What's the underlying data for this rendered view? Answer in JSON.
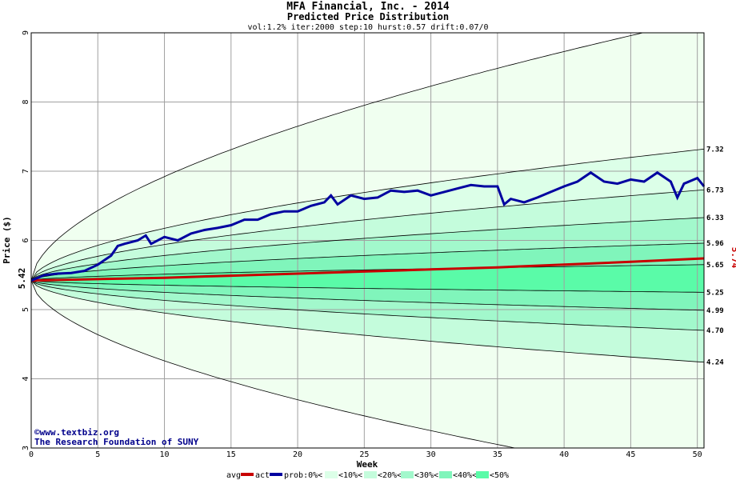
{
  "chart_data": {
    "type": "area",
    "title": "MFA Financial, Inc. - 2014",
    "subtitle": "Predicted Price Distribution",
    "params": "vol:1.2% iter:2000 step:10 hurst:0.57 drift:0.07/0",
    "xlabel": "Week",
    "ylabel": "Price ($)",
    "xlim": [
      0,
      50.5
    ],
    "ylim": [
      3,
      9
    ],
    "x_ticks": [
      0,
      5,
      10,
      15,
      20,
      25,
      30,
      35,
      40,
      45,
      50
    ],
    "y_ticks": [
      3,
      4,
      5,
      6,
      7,
      8,
      9
    ],
    "start_price": 5.42,
    "start_price_label": "5.42",
    "end_price_label": "5.74",
    "colors": {
      "act": "#0000a0",
      "avg": "#c80000",
      "b0": "#f0fff0",
      "b10": "#dcffe8",
      "b20": "#c4fcdc",
      "b30": "#a2f8cc",
      "b40": "#80f5bb",
      "b50": "#5afba8",
      "grid": "#a0a0a0"
    },
    "percentile_curves": [
      {
        "name": "p0_upper",
        "end": 9.2,
        "edge_label": ""
      },
      {
        "name": "p10_upper",
        "end": 7.32,
        "edge_label": "7.32"
      },
      {
        "name": "p20_upper",
        "end": 6.73,
        "edge_label": "6.73"
      },
      {
        "name": "p30_upper",
        "end": 6.33,
        "edge_label": "6.33"
      },
      {
        "name": "p40_upper",
        "end": 5.96,
        "edge_label": "5.96"
      },
      {
        "name": "p50_upper",
        "end": 5.65,
        "edge_label": "5.65"
      },
      {
        "name": "p50_lower",
        "end": 5.25,
        "edge_label": "5.25"
      },
      {
        "name": "p40_lower",
        "end": 4.99,
        "edge_label": "4.99"
      },
      {
        "name": "p30_lower",
        "end": 4.7,
        "edge_label": "4.70"
      },
      {
        "name": "p20_lower",
        "end": 4.24,
        "edge_label": "4.24"
      },
      {
        "name": "p0_lower",
        "end": 2.5,
        "edge_label": ""
      }
    ],
    "avg_series": {
      "name": "avg",
      "x": [
        0,
        5,
        10,
        15,
        20,
        25,
        30,
        35,
        40,
        45,
        50.5
      ],
      "y": [
        5.42,
        5.44,
        5.46,
        5.49,
        5.52,
        5.55,
        5.58,
        5.61,
        5.65,
        5.69,
        5.74
      ]
    },
    "act_series": {
      "name": "act",
      "x": [
        0,
        1,
        2,
        3,
        4,
        5,
        6,
        6.5,
        7,
        8,
        8.6,
        9,
        10,
        11,
        12,
        13,
        14,
        15,
        16,
        17,
        18,
        19,
        20,
        21,
        22,
        22.5,
        23,
        24,
        25,
        26,
        27,
        28,
        29,
        30,
        31,
        32,
        33,
        34,
        35,
        35.5,
        36,
        37,
        38,
        39,
        40,
        41,
        42,
        43,
        44,
        45,
        46,
        47,
        48,
        48.5,
        49,
        50,
        50.5
      ],
      "y": [
        5.42,
        5.5,
        5.52,
        5.53,
        5.56,
        5.65,
        5.78,
        5.92,
        5.95,
        6.0,
        6.07,
        5.95,
        6.05,
        6.0,
        6.1,
        6.15,
        6.18,
        6.22,
        6.3,
        6.3,
        6.38,
        6.42,
        6.42,
        6.5,
        6.55,
        6.65,
        6.52,
        6.65,
        6.6,
        6.62,
        6.72,
        6.7,
        6.72,
        6.65,
        6.7,
        6.75,
        6.8,
        6.78,
        6.78,
        6.52,
        6.6,
        6.55,
        6.62,
        6.7,
        6.78,
        6.85,
        6.98,
        6.85,
        6.82,
        6.88,
        6.85,
        6.98,
        6.85,
        6.62,
        6.82,
        6.9,
        6.78
      ]
    },
    "legend": {
      "avg": "avg",
      "act": "act",
      "prob0": "prob:0%<",
      "p10": "<10%<",
      "p20": "<20%<",
      "p30": "<30%<",
      "p40": "<40%<",
      "p50": "<50%"
    },
    "credits": {
      "line1": "©www.textbiz.org",
      "line2": "The Research Foundation of SUNY"
    }
  }
}
